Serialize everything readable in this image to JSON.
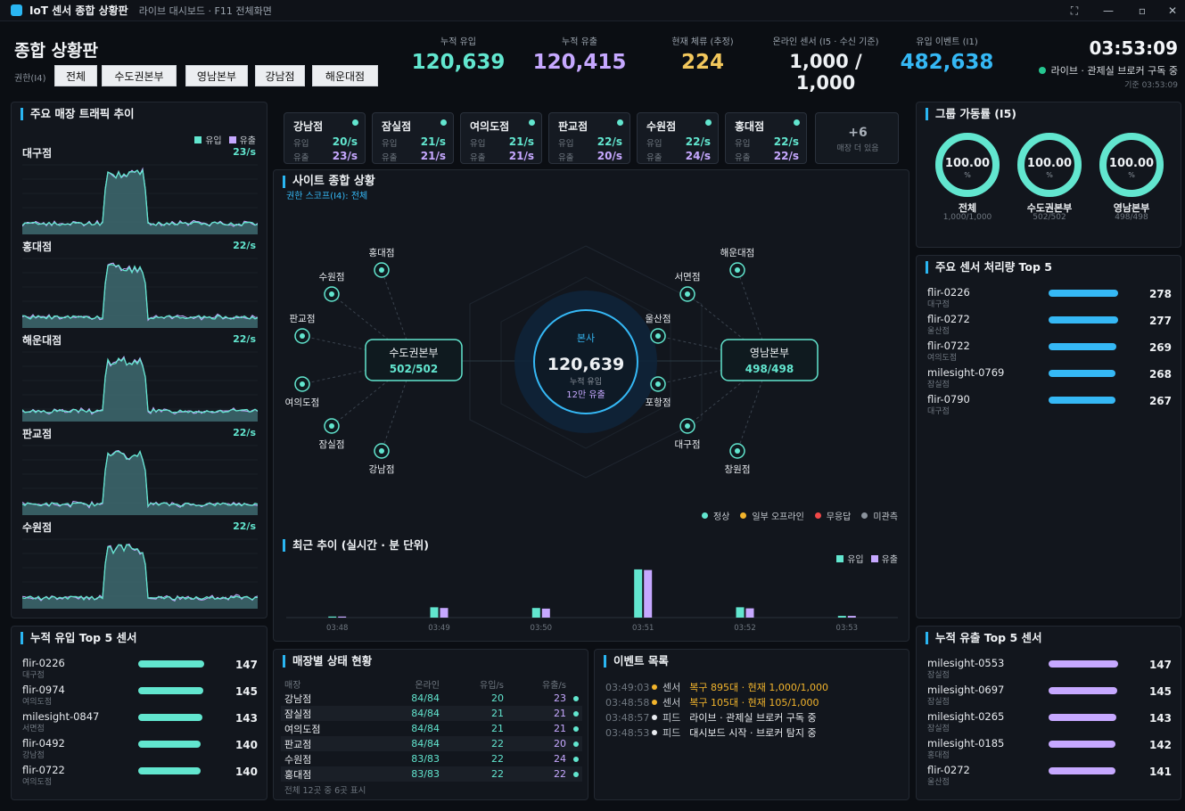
{
  "window": {
    "title": "IoT 센서 종합 상황판",
    "subtitle": "라이브 대시보드 · F11 전체화면",
    "controls": [
      "⛶",
      "—",
      "▫",
      "✕"
    ]
  },
  "header": {
    "title": "종합 상황판",
    "scope_label": "권한(I4)",
    "scope_buttons": [
      "전체",
      "수도권본부",
      "영남본부",
      "강남점",
      "해운대점"
    ],
    "kpis": [
      {
        "label": "누적 유입",
        "value": "120,639",
        "color": "#62e6cf"
      },
      {
        "label": "누적 유출",
        "value": "120,415",
        "color": "#c6a8ff"
      },
      {
        "label": "현재 체류 (추정)",
        "value": "224",
        "color": "#f2c75c"
      },
      {
        "label": "온라인 센서 (I5 · 수신 기준)",
        "value": "1,000 / 1,000",
        "color": "#eef1f4"
      },
      {
        "label": "유입 이벤트 (I1)",
        "value": "482,638",
        "color": "#35b8f5"
      }
    ],
    "clock": "03:53:09",
    "live_status": "라이브 · 관제실 브로커 구독 중",
    "basis": "기준 03:53:09"
  },
  "traffic": {
    "title": "주요 매장 트래픽 추이",
    "legend_in": "유입",
    "legend_out": "유출",
    "stores": [
      {
        "name": "대구점",
        "rate": "23/s"
      },
      {
        "name": "홍대점",
        "rate": "22/s"
      },
      {
        "name": "해운대점",
        "rate": "22/s"
      },
      {
        "name": "판교점",
        "rate": "22/s"
      },
      {
        "name": "수원점",
        "rate": "22/s"
      }
    ]
  },
  "store_cards": {
    "in_label": "유입",
    "out_label": "유출",
    "cards": [
      {
        "name": "강남점",
        "in": "20/s",
        "out": "23/s"
      },
      {
        "name": "잠실점",
        "in": "21/s",
        "out": "21/s"
      },
      {
        "name": "여의도점",
        "in": "21/s",
        "out": "21/s"
      },
      {
        "name": "판교점",
        "in": "22/s",
        "out": "20/s"
      },
      {
        "name": "수원점",
        "in": "22/s",
        "out": "24/s"
      },
      {
        "name": "홍대점",
        "in": "22/s",
        "out": "22/s"
      }
    ],
    "more_count": "+6",
    "more_label": "매장 더 있음"
  },
  "site": {
    "title": "사이트 종합 상황",
    "scope": "권한 스코프(I4): 전체",
    "hq": {
      "label": "본사",
      "value": "120,639",
      "sub": "누적 유입",
      "sub2": "12만 유출"
    },
    "regions": [
      {
        "name": "수도권본부",
        "value": "502/502"
      },
      {
        "name": "영남본부",
        "value": "498/498"
      }
    ],
    "left_stores": [
      "홍대점",
      "수원점",
      "판교점",
      "여의도점",
      "잠실점",
      "강남점"
    ],
    "right_stores": [
      "해운대점",
      "서면점",
      "울산점",
      "포항점",
      "대구점",
      "창원점"
    ],
    "legend": [
      {
        "label": "정상",
        "color": "#62e6cf"
      },
      {
        "label": "일부 오프라인",
        "color": "#f2b42c"
      },
      {
        "label": "무응답",
        "color": "#f04848"
      },
      {
        "label": "미관측",
        "color": "#8b939d"
      }
    ]
  },
  "recent": {
    "title": "최근 추이 (실시간 · 분 단위)",
    "legend_in": "유입",
    "legend_out": "유출"
  },
  "chart_data": {
    "type": "bar",
    "categories": [
      "03:48",
      "03:49",
      "03:50",
      "03:51",
      "03:52",
      "03:53"
    ],
    "series": [
      {
        "name": "유입",
        "values": [
          0.3,
          3.0,
          2.8,
          14.0,
          3.0,
          0.5
        ],
        "color": "#62e6cf"
      },
      {
        "name": "유출",
        "values": [
          0.3,
          2.8,
          2.6,
          13.8,
          2.7,
          0.5
        ],
        "color": "#c6a8ff"
      }
    ],
    "title": "최근 추이 (실시간 · 분 단위)",
    "xlabel": "",
    "ylabel": "",
    "ylim": [
      0,
      15
    ],
    "legend": "top-right"
  },
  "top_in": {
    "title": "누적 유입 Top 5 센서",
    "rows": [
      {
        "name": "flir-0226",
        "sub": "대구점",
        "value": "147",
        "ratio": 1.0
      },
      {
        "name": "flir-0974",
        "sub": "여의도점",
        "value": "145",
        "ratio": 0.986
      },
      {
        "name": "milesight-0847",
        "sub": "서면점",
        "value": "143",
        "ratio": 0.973
      },
      {
        "name": "flir-0492",
        "sub": "강남점",
        "value": "140",
        "ratio": 0.952
      },
      {
        "name": "flir-0722",
        "sub": "여의도점",
        "value": "140",
        "ratio": 0.952
      }
    ]
  },
  "store_status": {
    "title": "매장별 상태 현황",
    "headers": [
      "매장",
      "온라인",
      "유입/s",
      "유출/s"
    ],
    "rows": [
      [
        "강남점",
        "84/84",
        "20",
        "23"
      ],
      [
        "잠실점",
        "84/84",
        "21",
        "21"
      ],
      [
        "여의도점",
        "84/84",
        "21",
        "21"
      ],
      [
        "판교점",
        "84/84",
        "22",
        "20"
      ],
      [
        "수원점",
        "83/83",
        "22",
        "24"
      ],
      [
        "홍대점",
        "83/83",
        "22",
        "22"
      ]
    ],
    "footer": "전체 12곳 중 6곳 표시"
  },
  "events": {
    "title": "이벤트 목록",
    "rows": [
      {
        "time": "03:49:03",
        "kind": "센서",
        "text": "복구 895대 · 현재 1,000/1,000",
        "color": "#f2b42c"
      },
      {
        "time": "03:48:58",
        "kind": "센서",
        "text": "복구 105대 · 현재 105/1,000",
        "color": "#f2b42c"
      },
      {
        "time": "03:48:57",
        "kind": "피드",
        "text": "라이브 · 관제실 브로커 구독 중",
        "color": "#e8ebef"
      },
      {
        "time": "03:48:53",
        "kind": "피드",
        "text": "대시보드 시작 · 브로커 탐지 중",
        "color": "#e8ebef"
      }
    ]
  },
  "uptime": {
    "title": "그룹 가동률 (I5)",
    "gauges": [
      {
        "value": "100.00",
        "unit": "%",
        "label": "전체",
        "sub": "1,000/1,000"
      },
      {
        "value": "100.00",
        "unit": "%",
        "label": "수도권본부",
        "sub": "502/502"
      },
      {
        "value": "100.00",
        "unit": "%",
        "label": "영남본부",
        "sub": "498/498"
      }
    ]
  },
  "top_throughput": {
    "title": "주요 센서 처리량 Top 5",
    "rows": [
      {
        "name": "flir-0226",
        "sub": "대구점",
        "value": "278",
        "ratio": 1.0
      },
      {
        "name": "flir-0272",
        "sub": "울산점",
        "value": "277",
        "ratio": 0.996
      },
      {
        "name": "flir-0722",
        "sub": "여의도점",
        "value": "269",
        "ratio": 0.968
      },
      {
        "name": "milesight-0769",
        "sub": "잠실점",
        "value": "268",
        "ratio": 0.964
      },
      {
        "name": "flir-0790",
        "sub": "대구점",
        "value": "267",
        "ratio": 0.96
      }
    ]
  },
  "top_out": {
    "title": "누적 유출 Top 5 센서",
    "rows": [
      {
        "name": "milesight-0553",
        "sub": "잠실점",
        "value": "147",
        "ratio": 1.0
      },
      {
        "name": "milesight-0697",
        "sub": "잠실점",
        "value": "145",
        "ratio": 0.986
      },
      {
        "name": "milesight-0265",
        "sub": "잠실점",
        "value": "143",
        "ratio": 0.973
      },
      {
        "name": "milesight-0185",
        "sub": "홍대점",
        "value": "142",
        "ratio": 0.966
      },
      {
        "name": "flir-0272",
        "sub": "울산점",
        "value": "141",
        "ratio": 0.959
      }
    ]
  }
}
